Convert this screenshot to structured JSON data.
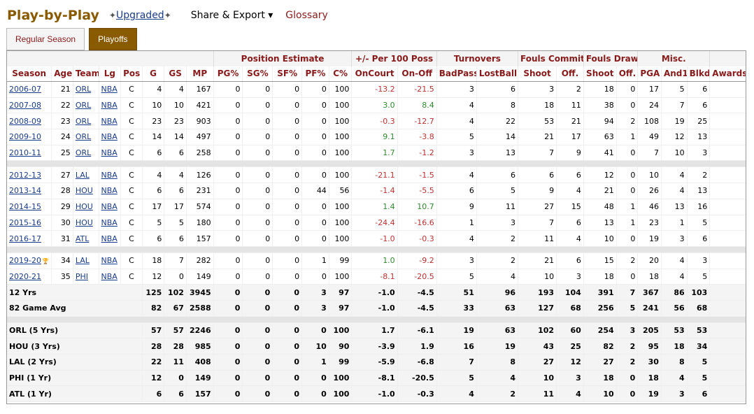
{
  "header": {
    "title": "Play-by-Play",
    "upgraded_label": "Upgraded",
    "share_label": "Share & Export ▾",
    "glossary_label": "Glossary"
  },
  "tabs": [
    {
      "label": "Regular Season"
    },
    {
      "label": "Playoffs"
    }
  ],
  "groups": [
    "Position Estimate",
    "+/- Per 100 Poss",
    "Turnovers",
    "Fouls Committed",
    "Fouls Drawn",
    "Misc."
  ],
  "columns": [
    "Season",
    "Age",
    "Team",
    "Lg",
    "Pos",
    "G",
    "GS",
    "MP",
    "PG%",
    "SG%",
    "SF%",
    "PF%",
    "C%",
    "OnCourt",
    "On-Off",
    "BadPass",
    "LostBall",
    "Shoot",
    "Off.",
    "Shoot",
    "Off.",
    "PGA",
    "And1",
    "Blkd",
    "Awards"
  ],
  "rows": [
    [
      "2006-07",
      "21",
      "ORL",
      "NBA",
      "C",
      "4",
      "4",
      "167",
      "0",
      "0",
      "0",
      "0",
      "100",
      "-13.2",
      "-21.5",
      "3",
      "6",
      "3",
      "2",
      "18",
      "0",
      "17",
      "5",
      "6",
      ""
    ],
    [
      "2007-08",
      "22",
      "ORL",
      "NBA",
      "C",
      "10",
      "10",
      "421",
      "0",
      "0",
      "0",
      "0",
      "100",
      "3.0",
      "8.4",
      "4",
      "8",
      "18",
      "11",
      "38",
      "0",
      "24",
      "7",
      "6",
      ""
    ],
    [
      "2008-09",
      "23",
      "ORL",
      "NBA",
      "C",
      "23",
      "23",
      "903",
      "0",
      "0",
      "0",
      "0",
      "100",
      "-0.3",
      "-12.7",
      "4",
      "22",
      "53",
      "21",
      "94",
      "2",
      "108",
      "19",
      "25",
      ""
    ],
    [
      "2009-10",
      "24",
      "ORL",
      "NBA",
      "C",
      "14",
      "14",
      "497",
      "0",
      "0",
      "0",
      "0",
      "100",
      "9.1",
      "-3.8",
      "5",
      "14",
      "21",
      "17",
      "63",
      "1",
      "49",
      "12",
      "13",
      ""
    ],
    [
      "2010-11",
      "25",
      "ORL",
      "NBA",
      "C",
      "6",
      "6",
      "258",
      "0",
      "0",
      "0",
      "0",
      "100",
      "1.7",
      "-1.2",
      "3",
      "13",
      "7",
      "9",
      "41",
      "0",
      "7",
      "10",
      "3",
      ""
    ],
    [
      "2012-13",
      "27",
      "LAL",
      "NBA",
      "C",
      "4",
      "4",
      "126",
      "0",
      "0",
      "0",
      "0",
      "100",
      "-21.1",
      "-1.5",
      "4",
      "6",
      "6",
      "6",
      "12",
      "0",
      "10",
      "4",
      "2",
      ""
    ],
    [
      "2013-14",
      "28",
      "HOU",
      "NBA",
      "C",
      "6",
      "6",
      "231",
      "0",
      "0",
      "0",
      "44",
      "56",
      "-1.4",
      "-5.5",
      "6",
      "5",
      "9",
      "4",
      "21",
      "0",
      "26",
      "4",
      "13",
      ""
    ],
    [
      "2014-15",
      "29",
      "HOU",
      "NBA",
      "C",
      "17",
      "17",
      "574",
      "0",
      "0",
      "0",
      "0",
      "100",
      "1.4",
      "10.7",
      "9",
      "11",
      "27",
      "15",
      "48",
      "1",
      "46",
      "13",
      "16",
      ""
    ],
    [
      "2015-16",
      "30",
      "HOU",
      "NBA",
      "C",
      "5",
      "5",
      "180",
      "0",
      "0",
      "0",
      "0",
      "100",
      "-24.4",
      "-16.6",
      "1",
      "3",
      "7",
      "6",
      "13",
      "1",
      "23",
      "1",
      "5",
      ""
    ],
    [
      "2016-17",
      "31",
      "ATL",
      "NBA",
      "C",
      "6",
      "6",
      "157",
      "0",
      "0",
      "0",
      "0",
      "100",
      "-1.0",
      "-0.3",
      "4",
      "2",
      "11",
      "4",
      "10",
      "0",
      "19",
      "3",
      "6",
      ""
    ],
    [
      "2019-20",
      "34",
      "LAL",
      "NBA",
      "C",
      "18",
      "7",
      "282",
      "0",
      "0",
      "0",
      "1",
      "99",
      "1.0",
      "-9.2",
      "3",
      "2",
      "21",
      "6",
      "15",
      "2",
      "20",
      "4",
      "3",
      ""
    ],
    [
      "2020-21",
      "35",
      "PHI",
      "NBA",
      "C",
      "12",
      "0",
      "149",
      "0",
      "0",
      "0",
      "0",
      "100",
      "-8.1",
      "-20.5",
      "5",
      "4",
      "10",
      "3",
      "18",
      "0",
      "18",
      "4",
      "5",
      ""
    ]
  ],
  "totals": [
    [
      "12 Yrs",
      "125",
      "102",
      "3945",
      "0",
      "0",
      "0",
      "3",
      "97",
      "-1.0",
      "-4.5",
      "51",
      "96",
      "193",
      "104",
      "391",
      "7",
      "367",
      "86",
      "103",
      ""
    ],
    [
      "82 Game Avg",
      "82",
      "67",
      "2588",
      "0",
      "0",
      "0",
      "3",
      "97",
      "-1.0",
      "-4.5",
      "33",
      "63",
      "127",
      "68",
      "256",
      "5",
      "241",
      "56",
      "68",
      ""
    ]
  ],
  "team_totals": [
    [
      "ORL (5 Yrs)",
      "57",
      "57",
      "2246",
      "0",
      "0",
      "0",
      "0",
      "100",
      "1.7",
      "-6.1",
      "19",
      "63",
      "102",
      "60",
      "254",
      "3",
      "205",
      "53",
      "53",
      ""
    ],
    [
      "HOU (3 Yrs)",
      "28",
      "28",
      "985",
      "0",
      "0",
      "0",
      "10",
      "90",
      "-3.9",
      "1.9",
      "16",
      "19",
      "43",
      "25",
      "82",
      "2",
      "95",
      "18",
      "34",
      ""
    ],
    [
      "LAL (2 Yrs)",
      "22",
      "11",
      "408",
      "0",
      "0",
      "0",
      "1",
      "99",
      "-5.9",
      "-6.8",
      "7",
      "8",
      "27",
      "12",
      "27",
      "2",
      "30",
      "8",
      "5",
      ""
    ],
    [
      "PHI (1 Yr)",
      "12",
      "0",
      "149",
      "0",
      "0",
      "0",
      "0",
      "100",
      "-8.1",
      "-20.5",
      "5",
      "4",
      "10",
      "3",
      "18",
      "0",
      "18",
      "4",
      "5",
      ""
    ],
    [
      "ATL (1 Yr)",
      "6",
      "6",
      "157",
      "0",
      "0",
      "0",
      "0",
      "100",
      "-1.0",
      "-0.3",
      "4",
      "2",
      "11",
      "4",
      "10",
      "0",
      "19",
      "3",
      "6",
      ""
    ]
  ],
  "colors": {
    "brand": "#8a5a00",
    "header_text": "#8a1a1a",
    "link": "#1a3c8c",
    "negative": "#c03030",
    "positive": "#2e8b2e"
  },
  "icons": {
    "trophy": "trophy-icon",
    "sparkle": "sparkle-icon"
  }
}
